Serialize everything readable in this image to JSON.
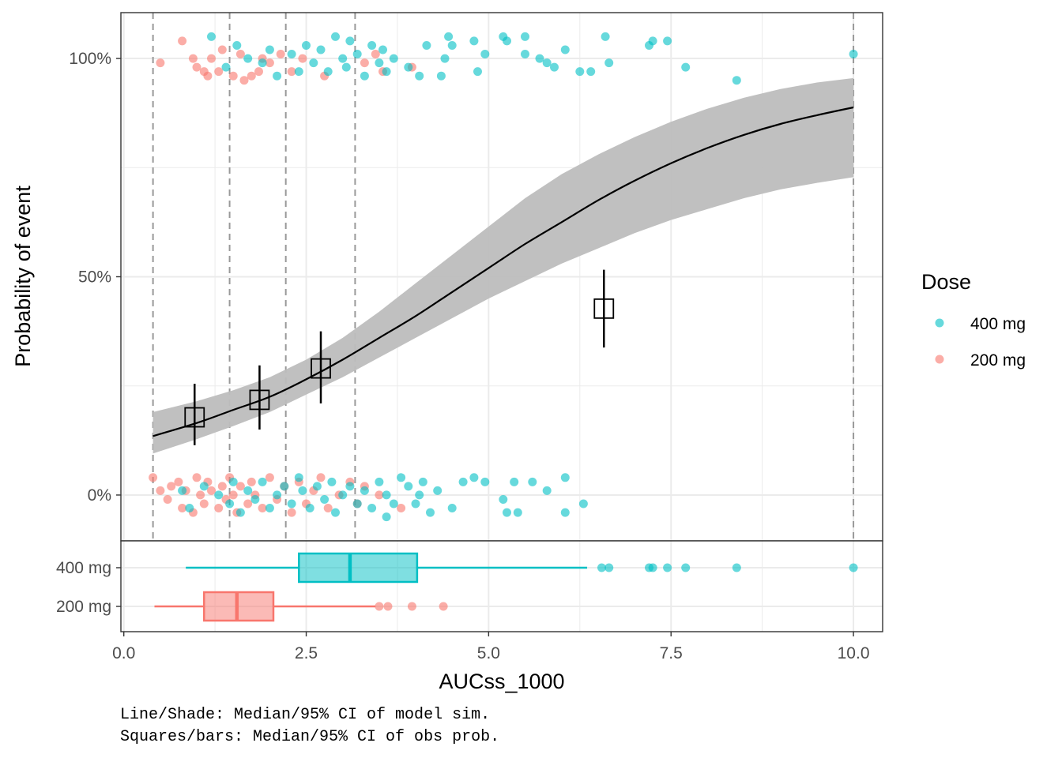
{
  "chart_data": {
    "type": "scatter",
    "x_label": "AUCss_1000",
    "y_label": "Probability of event",
    "x_ticks": [
      0,
      2.5,
      5,
      7.5,
      10
    ],
    "x_tick_labels": [
      "0.0",
      "2.5",
      "5.0",
      "7.5",
      "10.0"
    ],
    "xlim": [
      -0.04,
      10.4
    ],
    "y_ticks": [
      0,
      0.5,
      1
    ],
    "y_tick_labels": [
      "0%",
      "50%",
      "100%"
    ],
    "ylim": [
      -0.105,
      1.105
    ],
    "grid": true,
    "legend": {
      "title": "Dose",
      "position": "right",
      "entries": [
        {
          "label": "400 mg",
          "color": "#00BFC4"
        },
        {
          "label": "200 mg",
          "color": "#F8766D"
        }
      ]
    },
    "bin_boundaries": [
      0.4,
      1.45,
      2.22,
      3.17,
      10.0
    ],
    "model_median": {
      "x": [
        0.4,
        1.0,
        1.5,
        2.0,
        2.5,
        3.0,
        3.5,
        4.0,
        4.5,
        5.0,
        5.5,
        6.0,
        6.5,
        7.0,
        7.5,
        8.0,
        8.5,
        9.0,
        9.5,
        10.0
      ],
      "y": [
        0.135,
        0.165,
        0.195,
        0.225,
        0.265,
        0.31,
        0.36,
        0.41,
        0.465,
        0.52,
        0.575,
        0.625,
        0.675,
        0.72,
        0.76,
        0.795,
        0.825,
        0.85,
        0.87,
        0.888
      ]
    },
    "model_ci": {
      "x": [
        0.4,
        1.0,
        1.5,
        2.0,
        2.5,
        3.0,
        3.5,
        4.0,
        4.5,
        5.0,
        5.5,
        6.0,
        6.5,
        7.0,
        7.5,
        8.0,
        8.5,
        9.0,
        9.5,
        10.0
      ],
      "lower": [
        0.095,
        0.128,
        0.158,
        0.19,
        0.23,
        0.27,
        0.315,
        0.36,
        0.405,
        0.45,
        0.49,
        0.53,
        0.565,
        0.6,
        0.63,
        0.655,
        0.68,
        0.7,
        0.715,
        0.728
      ],
      "upper": [
        0.19,
        0.215,
        0.24,
        0.27,
        0.31,
        0.36,
        0.42,
        0.485,
        0.55,
        0.615,
        0.68,
        0.735,
        0.78,
        0.82,
        0.855,
        0.885,
        0.91,
        0.93,
        0.945,
        0.955
      ]
    },
    "observed_bins": [
      {
        "x": 0.97,
        "median": 0.178,
        "lower": 0.114,
        "upper": 0.255
      },
      {
        "x": 1.86,
        "median": 0.218,
        "lower": 0.15,
        "upper": 0.297
      },
      {
        "x": 2.7,
        "median": 0.29,
        "lower": 0.21,
        "upper": 0.375
      },
      {
        "x": 6.58,
        "median": 0.427,
        "lower": 0.338,
        "upper": 0.516
      }
    ],
    "points_400mg_event": [
      [
        1.2,
        1.05
      ],
      [
        1.4,
        0.98
      ],
      [
        1.55,
        1.03
      ],
      [
        1.7,
        1.0
      ],
      [
        1.9,
        0.99
      ],
      [
        2.0,
        1.02
      ],
      [
        2.1,
        0.96
      ],
      [
        2.3,
        1.01
      ],
      [
        2.4,
        0.97
      ],
      [
        2.5,
        1.03
      ],
      [
        2.6,
        0.99
      ],
      [
        2.7,
        1.02
      ],
      [
        2.8,
        0.97
      ],
      [
        2.9,
        1.05
      ],
      [
        3.0,
        1.0
      ],
      [
        3.05,
        0.98
      ],
      [
        3.1,
        1.04
      ],
      [
        3.2,
        1.01
      ],
      [
        3.3,
        0.96
      ],
      [
        3.4,
        1.03
      ],
      [
        3.5,
        0.99
      ],
      [
        3.55,
        1.02
      ],
      [
        3.6,
        0.97
      ],
      [
        3.7,
        1.0
      ],
      [
        3.9,
        0.98
      ],
      [
        4.05,
        0.96
      ],
      [
        4.15,
        1.03
      ],
      [
        4.35,
        0.96
      ],
      [
        4.4,
        1.0
      ],
      [
        4.45,
        1.05
      ],
      [
        4.5,
        1.03
      ],
      [
        4.8,
        1.04
      ],
      [
        4.85,
        0.97
      ],
      [
        4.95,
        1.01
      ],
      [
        5.2,
        1.05
      ],
      [
        5.25,
        1.04
      ],
      [
        5.5,
        1.05
      ],
      [
        5.5,
        1.01
      ],
      [
        5.7,
        1.0
      ],
      [
        5.8,
        0.99
      ],
      [
        5.9,
        0.98
      ],
      [
        6.05,
        1.02
      ],
      [
        6.25,
        0.97
      ],
      [
        6.4,
        0.97
      ],
      [
        6.6,
        1.05
      ],
      [
        6.65,
        0.99
      ],
      [
        7.2,
        1.03
      ],
      [
        7.25,
        1.04
      ],
      [
        7.45,
        1.04
      ],
      [
        7.7,
        0.98
      ],
      [
        8.4,
        0.95
      ],
      [
        10.0,
        1.01
      ]
    ],
    "points_200mg_event": [
      [
        0.5,
        0.99
      ],
      [
        0.8,
        1.04
      ],
      [
        0.95,
        1.0
      ],
      [
        1.0,
        0.98
      ],
      [
        1.1,
        0.97
      ],
      [
        1.15,
        0.96
      ],
      [
        1.2,
        1.0
      ],
      [
        1.3,
        0.97
      ],
      [
        1.35,
        1.02
      ],
      [
        1.5,
        0.96
      ],
      [
        1.6,
        1.01
      ],
      [
        1.65,
        0.95
      ],
      [
        1.75,
        0.96
      ],
      [
        1.85,
        0.97
      ],
      [
        1.9,
        1.0
      ],
      [
        2.0,
        0.99
      ],
      [
        2.15,
        1.01
      ],
      [
        2.3,
        0.97
      ],
      [
        2.45,
        1.0
      ],
      [
        2.75,
        0.96
      ],
      [
        3.3,
        0.99
      ],
      [
        3.45,
        1.01
      ],
      [
        3.55,
        0.97
      ],
      [
        3.95,
        0.98
      ]
    ],
    "points_400mg_noevent": [
      [
        0.8,
        0.01
      ],
      [
        0.9,
        -0.03
      ],
      [
        1.1,
        0.02
      ],
      [
        1.3,
        0.0
      ],
      [
        1.45,
        -0.02
      ],
      [
        1.5,
        0.03
      ],
      [
        1.6,
        -0.04
      ],
      [
        1.7,
        0.01
      ],
      [
        1.8,
        -0.01
      ],
      [
        1.9,
        0.03
      ],
      [
        2.0,
        -0.03
      ],
      [
        2.1,
        0.0
      ],
      [
        2.2,
        0.02
      ],
      [
        2.3,
        -0.02
      ],
      [
        2.4,
        0.04
      ],
      [
        2.45,
        0.01
      ],
      [
        2.55,
        -0.03
      ],
      [
        2.65,
        0.02
      ],
      [
        2.75,
        -0.01
      ],
      [
        2.85,
        0.03
      ],
      [
        2.9,
        -0.04
      ],
      [
        3.0,
        0.0
      ],
      [
        3.1,
        0.02
      ],
      [
        3.2,
        -0.02
      ],
      [
        3.3,
        0.01
      ],
      [
        3.4,
        -0.03
      ],
      [
        3.5,
        0.03
      ],
      [
        3.6,
        0.0
      ],
      [
        3.7,
        -0.02
      ],
      [
        3.8,
        0.04
      ],
      [
        3.9,
        0.02
      ],
      [
        4.0,
        -0.02
      ],
      [
        4.1,
        0.03
      ],
      [
        4.2,
        -0.04
      ],
      [
        4.3,
        0.01
      ],
      [
        4.5,
        -0.03
      ],
      [
        4.65,
        0.03
      ],
      [
        4.8,
        0.04
      ],
      [
        4.95,
        0.03
      ],
      [
        5.2,
        -0.01
      ],
      [
        5.25,
        -0.04
      ],
      [
        5.4,
        -0.04
      ],
      [
        5.35,
        0.03
      ],
      [
        5.6,
        0.03
      ],
      [
        5.8,
        0.01
      ],
      [
        6.05,
        0.04
      ],
      [
        6.05,
        -0.04
      ],
      [
        6.3,
        -0.02
      ],
      [
        3.6,
        -0.05
      ],
      [
        4.05,
        0.0
      ]
    ],
    "points_200mg_noevent": [
      [
        0.4,
        0.04
      ],
      [
        0.5,
        0.01
      ],
      [
        0.6,
        -0.01
      ],
      [
        0.65,
        0.02
      ],
      [
        0.75,
        0.03
      ],
      [
        0.8,
        -0.03
      ],
      [
        0.85,
        0.01
      ],
      [
        0.95,
        -0.04
      ],
      [
        1.0,
        0.04
      ],
      [
        1.05,
        0.0
      ],
      [
        1.1,
        -0.02
      ],
      [
        1.15,
        0.03
      ],
      [
        1.2,
        0.01
      ],
      [
        1.3,
        -0.03
      ],
      [
        1.35,
        0.02
      ],
      [
        1.4,
        -0.01
      ],
      [
        1.45,
        0.04
      ],
      [
        1.5,
        0.0
      ],
      [
        1.55,
        -0.04
      ],
      [
        1.6,
        0.02
      ],
      [
        1.7,
        -0.02
      ],
      [
        1.75,
        0.03
      ],
      [
        1.8,
        0.0
      ],
      [
        1.9,
        -0.03
      ],
      [
        2.0,
        0.04
      ],
      [
        2.1,
        -0.01
      ],
      [
        2.2,
        0.02
      ],
      [
        2.3,
        -0.04
      ],
      [
        2.4,
        0.03
      ],
      [
        2.5,
        -0.02
      ],
      [
        2.6,
        0.01
      ],
      [
        2.7,
        0.04
      ],
      [
        2.8,
        -0.03
      ],
      [
        2.95,
        0.0
      ],
      [
        3.1,
        0.03
      ],
      [
        3.2,
        -0.02
      ],
      [
        3.3,
        0.02
      ],
      [
        3.5,
        0.0
      ],
      [
        3.8,
        -0.03
      ]
    ],
    "boxplot": [
      {
        "group": "400 mg",
        "color": "#00BFC4",
        "whisker_low": 0.85,
        "q1": 2.4,
        "median": 3.1,
        "q3": 4.02,
        "whisker_high": 6.35,
        "outliers": [
          6.55,
          6.65,
          7.2,
          7.25,
          7.45,
          7.7,
          8.4,
          10.0
        ]
      },
      {
        "group": "200 mg",
        "color": "#F8766D",
        "whisker_low": 0.42,
        "q1": 1.1,
        "median": 1.55,
        "q3": 2.05,
        "whisker_high": 3.45,
        "outliers": [
          3.5,
          3.62,
          3.95,
          4.38
        ]
      }
    ],
    "caption": [
      "Line/Shade: Median/95% CI of model sim.",
      "Squares/bars: Median/95% CI of obs prob."
    ]
  }
}
